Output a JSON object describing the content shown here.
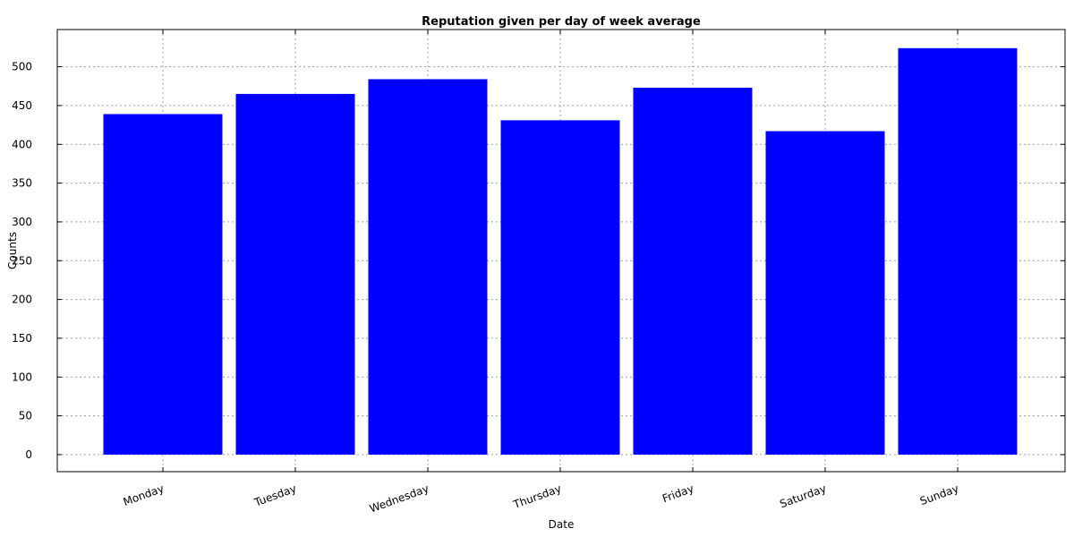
{
  "chart_data": {
    "type": "bar",
    "title": "Reputation given per day of week average",
    "xlabel": "Date",
    "ylabel": "Counts",
    "categories": [
      "Monday",
      "Tuesday",
      "Wednesday",
      "Thursday",
      "Friday",
      "Saturday",
      "Sunday"
    ],
    "values": [
      439,
      465,
      484,
      431,
      473,
      417,
      524
    ],
    "ylim": [
      -22,
      548
    ],
    "yticks": [
      0,
      50,
      100,
      150,
      200,
      250,
      300,
      350,
      400,
      450,
      500
    ],
    "grid": true,
    "legend": "none",
    "bar_color": "#0000ff"
  }
}
